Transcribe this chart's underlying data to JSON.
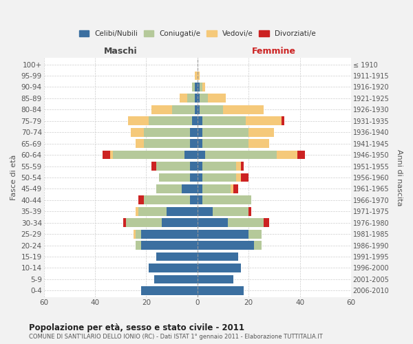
{
  "age_groups": [
    "0-4",
    "5-9",
    "10-14",
    "15-19",
    "20-24",
    "25-29",
    "30-34",
    "35-39",
    "40-44",
    "45-49",
    "50-54",
    "55-59",
    "60-64",
    "65-69",
    "70-74",
    "75-79",
    "80-84",
    "85-89",
    "90-94",
    "95-99",
    "100+"
  ],
  "birth_years": [
    "2006-2010",
    "2001-2005",
    "1996-2000",
    "1991-1995",
    "1986-1990",
    "1981-1985",
    "1976-1980",
    "1971-1975",
    "1966-1970",
    "1961-1965",
    "1956-1960",
    "1951-1955",
    "1946-1950",
    "1941-1945",
    "1936-1940",
    "1931-1935",
    "1926-1930",
    "1921-1925",
    "1916-1920",
    "1911-1915",
    "≤ 1910"
  ],
  "maschi_celibi": [
    22,
    17,
    19,
    16,
    22,
    22,
    14,
    12,
    3,
    6,
    3,
    3,
    5,
    3,
    3,
    2,
    1,
    1,
    1,
    0,
    0
  ],
  "maschi_coniugati": [
    0,
    0,
    0,
    0,
    2,
    2,
    14,
    11,
    18,
    10,
    12,
    13,
    28,
    18,
    18,
    17,
    9,
    3,
    1,
    0,
    0
  ],
  "maschi_vedovi": [
    0,
    0,
    0,
    0,
    0,
    1,
    0,
    1,
    0,
    0,
    0,
    0,
    1,
    3,
    5,
    8,
    8,
    3,
    0,
    1,
    0
  ],
  "maschi_divorziati": [
    0,
    0,
    0,
    0,
    0,
    0,
    1,
    0,
    2,
    0,
    0,
    2,
    3,
    0,
    0,
    0,
    0,
    0,
    0,
    0,
    0
  ],
  "femmine_nubili": [
    18,
    14,
    17,
    16,
    22,
    20,
    12,
    6,
    2,
    2,
    2,
    2,
    3,
    2,
    2,
    2,
    1,
    1,
    1,
    0,
    0
  ],
  "femmine_coniugate": [
    0,
    0,
    0,
    0,
    3,
    5,
    14,
    14,
    19,
    11,
    13,
    13,
    28,
    18,
    18,
    17,
    9,
    3,
    1,
    0,
    0
  ],
  "femmine_vedove": [
    0,
    0,
    0,
    0,
    0,
    0,
    0,
    0,
    0,
    1,
    2,
    2,
    8,
    8,
    10,
    14,
    16,
    7,
    1,
    1,
    0
  ],
  "femmine_divorziate": [
    0,
    0,
    0,
    0,
    0,
    0,
    2,
    1,
    0,
    2,
    3,
    1,
    3,
    0,
    0,
    1,
    0,
    0,
    0,
    0,
    0
  ],
  "colors": {
    "celibi": "#3B6FA0",
    "coniugati": "#B5C99A",
    "vedovi": "#F5C97A",
    "divorziati": "#CC2222"
  },
  "legend_labels": [
    "Celibi/Nubili",
    "Coniugati/e",
    "Vedovi/e",
    "Divorziati/e"
  ],
  "xlim": 60,
  "title": "Popolazione per età, sesso e stato civile - 2011",
  "subtitle": "COMUNE DI SANT'ILARIO DELLO IONIO (RC) - Dati ISTAT 1° gennaio 2011 - Elaborazione TUTTITALIA.IT",
  "ylabel_left": "Fasce di età",
  "ylabel_right": "Anni di nascita",
  "maschi_label": "Maschi",
  "femmine_label": "Femmine",
  "bg_color": "#f2f2f2",
  "plot_bg_color": "#ffffff",
  "grid_color": "#cccccc"
}
